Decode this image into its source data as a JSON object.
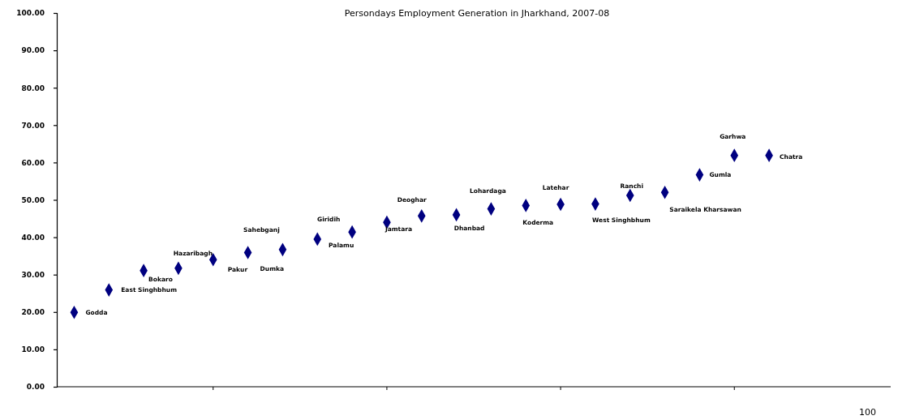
{
  "chart_data": {
    "type": "scatter",
    "title": "Persondays Employment Generation in Jharkhand, 2007-08",
    "categories": [
      null,
      null,
      null,
      null,
      null,
      null,
      null,
      null,
      null,
      null,
      null,
      null,
      null,
      null,
      null,
      null,
      null,
      null,
      null,
      null,
      null,
      null,
      null,
      null
    ],
    "series": [
      {
        "color": "#000080",
        "values": [
          19.9,
          25.9,
          31.1,
          31.7,
          34.0,
          35.9,
          36.7,
          39.5,
          41.4,
          44.0,
          45.7,
          46.0,
          47.6,
          48.5,
          48.8,
          48.9,
          51.2,
          52.0,
          56.7,
          61.9,
          61.9,
          null,
          null,
          null
        ]
      }
    ],
    "ylim": [
      0,
      100
    ],
    "yticks": [
      {
        "value": 0,
        "label": "0.00"
      },
      {
        "value": 10,
        "label": "10.00"
      },
      {
        "value": 20,
        "label": "20.00"
      },
      {
        "value": 30,
        "label": "30.00"
      },
      {
        "value": 40,
        "label": "40.00"
      },
      {
        "value": 50,
        "label": "50.00"
      },
      {
        "value": 60,
        "label": "60.00"
      },
      {
        "value": 70,
        "label": "70.00"
      },
      {
        "value": 80,
        "label": "80.00"
      },
      {
        "value": 90,
        "label": "90.00"
      },
      {
        "value": 100,
        "label": "100.00"
      }
    ],
    "grid": false,
    "marker": "diamond",
    "annotations": [
      "Godda",
      "East Singhbhum",
      "Bokaro",
      "Hazaribagh",
      "Pakur",
      "Dumka",
      "Sahebganj",
      "Giridih",
      "Palamu",
      "Jamtara",
      "Deoghar",
      "Dhanbad",
      "Lohardaga",
      "Koderma",
      "Latehar",
      "West Singhbhum",
      "Ranchi",
      "Saraikela Kharsawan",
      "Gumla",
      "Garhwa",
      "Chatra",
      "100"
    ]
  }
}
